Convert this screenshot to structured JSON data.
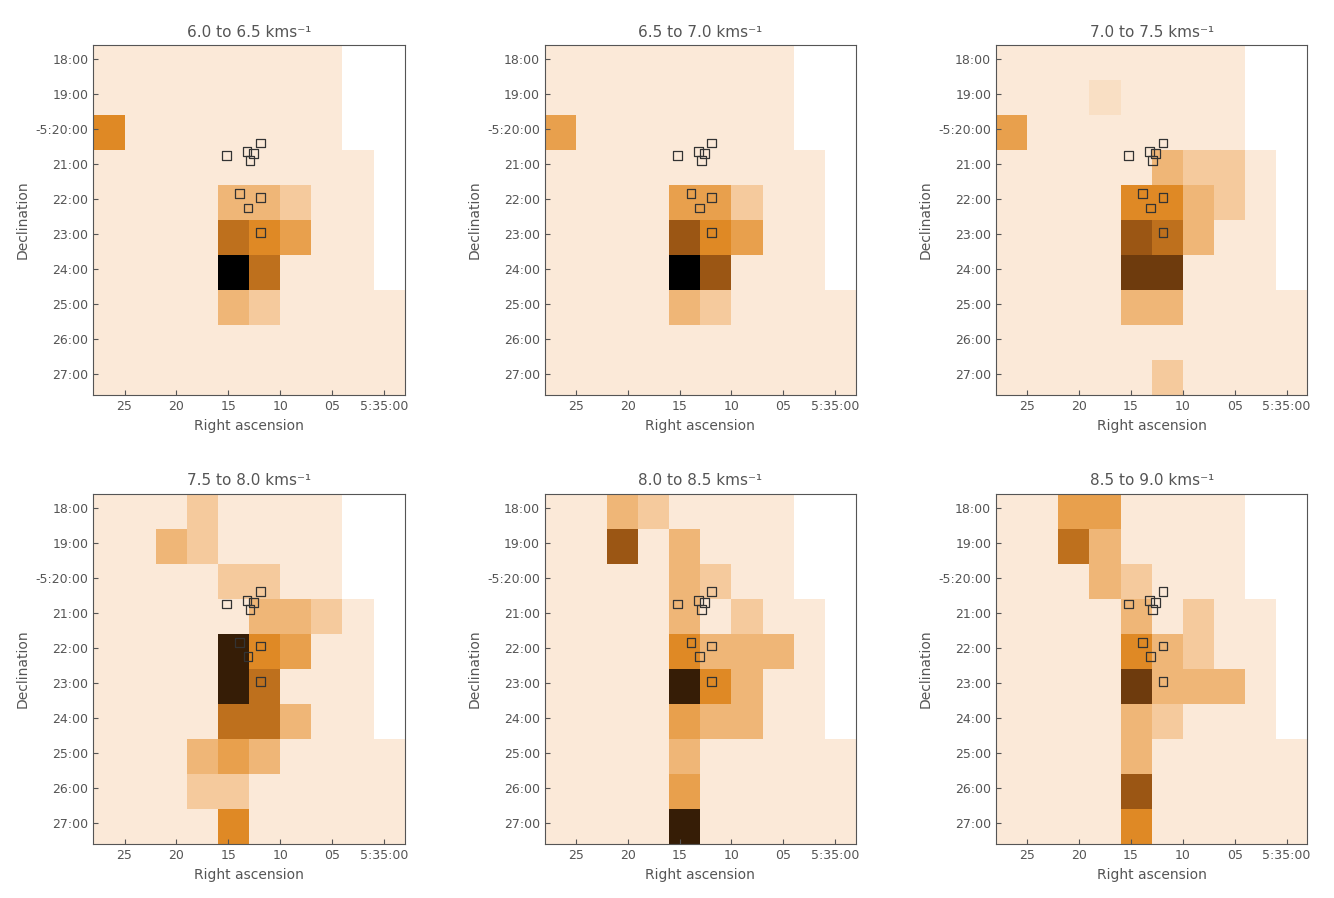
{
  "chart_data": {
    "type": "heatmap",
    "xlabel": "Right ascension",
    "ylabel": "Declination",
    "xlim": [
      28,
      -2
    ],
    "ylim": [
      -27.6,
      -17.6
    ],
    "xticks": [
      25,
      20,
      15,
      10,
      {
        "value": 5,
        "label": "05"
      },
      {
        "value": 0,
        "label": "5:35:00"
      }
    ],
    "yticks": [
      {
        "value": -18,
        "label": "18:00"
      },
      {
        "value": -19,
        "label": "19:00"
      },
      {
        "value": -20,
        "label": "-5:20:00"
      },
      {
        "value": -21,
        "label": "21:00"
      },
      {
        "value": -22,
        "label": "22:00"
      },
      {
        "value": -23,
        "label": "23:00"
      },
      {
        "value": -24,
        "label": "24:00"
      },
      {
        "value": -25,
        "label": "25:00"
      },
      {
        "value": -26,
        "label": "26:00"
      },
      {
        "value": -27,
        "label": "27:00"
      }
    ],
    "x_edges": [
      28,
      25,
      22,
      19,
      16,
      13,
      10,
      7,
      4,
      1,
      -2
    ],
    "y_edges": [
      -17.6,
      -18.6,
      -19.6,
      -20.6,
      -21.6,
      -22.6,
      -23.6,
      -24.6,
      -25.6,
      -26.6,
      -27.6
    ],
    "clim": [
      0,
      1
    ],
    "marker": "square",
    "markers": {
      "x": [
        15.2,
        13.2,
        12.6,
        12.9,
        11.9,
        13.9,
        11.9,
        13.1,
        11.9
      ],
      "y": [
        -20.75,
        -20.65,
        -20.7,
        -20.9,
        -20.4,
        -21.85,
        -21.95,
        -22.25,
        -22.95
      ]
    },
    "panels": [
      {
        "title": "6.0 to 6.5 kms⁻¹",
        "cells": [
          [
            0.05,
            0.05,
            0.05,
            0.05,
            0.05,
            0.05,
            0.05,
            0.05,
            null,
            null
          ],
          [
            0.05,
            0.05,
            0.05,
            0.05,
            0.05,
            0.05,
            0.05,
            0.05,
            null,
            null
          ],
          [
            0.5,
            0.05,
            0.05,
            0.05,
            0.05,
            0.05,
            0.05,
            0.05,
            null,
            null
          ],
          [
            0.05,
            0.05,
            0.05,
            0.05,
            0.05,
            0.05,
            0.05,
            0.05,
            0.05,
            null
          ],
          [
            0.05,
            0.05,
            0.05,
            0.05,
            0.3,
            0.3,
            0.2,
            0.05,
            0.05,
            null
          ],
          [
            0.05,
            0.05,
            0.05,
            0.05,
            0.6,
            0.5,
            0.4,
            0.05,
            0.05,
            null
          ],
          [
            0.05,
            0.05,
            0.05,
            0.05,
            1.0,
            0.6,
            0.05,
            0.05,
            0.05,
            null
          ],
          [
            0.05,
            0.05,
            0.05,
            0.05,
            0.3,
            0.2,
            0.05,
            0.05,
            0.05,
            0.05
          ],
          [
            0.05,
            0.05,
            0.05,
            0.05,
            0.05,
            0.05,
            0.05,
            0.05,
            0.05,
            0.05
          ],
          [
            0.05,
            0.05,
            0.05,
            0.05,
            0.05,
            0.05,
            0.05,
            0.05,
            0.05,
            0.05
          ]
        ]
      },
      {
        "title": "6.5 to 7.0 kms⁻¹",
        "cells": [
          [
            0.05,
            0.05,
            0.05,
            0.05,
            0.05,
            0.05,
            0.05,
            0.05,
            null,
            null
          ],
          [
            0.05,
            0.05,
            0.05,
            0.05,
            0.05,
            0.05,
            0.05,
            0.05,
            null,
            null
          ],
          [
            0.4,
            0.05,
            0.05,
            0.05,
            0.05,
            0.05,
            0.05,
            0.05,
            null,
            null
          ],
          [
            0.05,
            0.05,
            0.05,
            0.05,
            0.05,
            0.05,
            0.05,
            0.05,
            0.05,
            null
          ],
          [
            0.05,
            0.05,
            0.05,
            0.05,
            0.4,
            0.4,
            0.2,
            0.05,
            0.05,
            null
          ],
          [
            0.05,
            0.05,
            0.05,
            0.05,
            0.7,
            0.5,
            0.4,
            0.05,
            0.05,
            null
          ],
          [
            0.05,
            0.05,
            0.05,
            0.05,
            1.0,
            0.7,
            0.05,
            0.05,
            0.05,
            null
          ],
          [
            0.05,
            0.05,
            0.05,
            0.05,
            0.3,
            0.2,
            0.05,
            0.05,
            0.05,
            0.05
          ],
          [
            0.05,
            0.05,
            0.05,
            0.05,
            0.05,
            0.05,
            0.05,
            0.05,
            0.05,
            0.05
          ],
          [
            0.05,
            0.05,
            0.05,
            0.05,
            0.05,
            0.05,
            0.05,
            0.05,
            0.05,
            0.05
          ]
        ]
      },
      {
        "title": "7.0 to 7.5 kms⁻¹",
        "cells": [
          [
            0.05,
            0.05,
            0.05,
            0.05,
            0.05,
            0.05,
            0.05,
            0.05,
            null,
            null
          ],
          [
            0.05,
            0.05,
            0.05,
            0.1,
            0.05,
            0.05,
            0.05,
            0.05,
            null,
            null
          ],
          [
            0.4,
            0.05,
            0.05,
            0.05,
            0.05,
            0.05,
            0.05,
            0.05,
            null,
            null
          ],
          [
            0.05,
            0.05,
            0.05,
            0.05,
            0.05,
            0.3,
            0.2,
            0.2,
            0.05,
            null
          ],
          [
            0.05,
            0.05,
            0.05,
            0.05,
            0.5,
            0.5,
            0.3,
            0.2,
            0.05,
            null
          ],
          [
            0.05,
            0.05,
            0.05,
            0.05,
            0.7,
            0.6,
            0.3,
            0.05,
            0.05,
            null
          ],
          [
            0.05,
            0.05,
            0.05,
            0.05,
            0.8,
            0.8,
            0.05,
            0.05,
            0.05,
            null
          ],
          [
            0.05,
            0.05,
            0.05,
            0.05,
            0.3,
            0.3,
            0.05,
            0.05,
            0.05,
            0.05
          ],
          [
            0.05,
            0.05,
            0.05,
            0.05,
            0.05,
            0.05,
            0.05,
            0.05,
            0.05,
            0.05
          ],
          [
            0.05,
            0.05,
            0.05,
            0.05,
            0.05,
            0.2,
            0.05,
            0.05,
            0.05,
            0.05
          ]
        ]
      },
      {
        "title": "7.5 to 8.0 kms⁻¹",
        "cells": [
          [
            0.05,
            0.05,
            0.05,
            0.2,
            0.05,
            0.05,
            0.05,
            0.05,
            null,
            null
          ],
          [
            0.05,
            0.05,
            0.3,
            0.2,
            0.05,
            0.05,
            0.05,
            0.05,
            null,
            null
          ],
          [
            0.05,
            0.05,
            0.05,
            0.05,
            0.2,
            0.2,
            0.05,
            0.05,
            null,
            null
          ],
          [
            0.05,
            0.05,
            0.05,
            0.05,
            0.05,
            0.3,
            0.3,
            0.2,
            0.05,
            null
          ],
          [
            0.05,
            0.05,
            0.05,
            0.05,
            0.9,
            0.5,
            0.4,
            0.05,
            0.05,
            null
          ],
          [
            0.05,
            0.05,
            0.05,
            0.05,
            0.9,
            0.6,
            0.05,
            0.05,
            0.05,
            null
          ],
          [
            0.05,
            0.05,
            0.05,
            0.05,
            0.6,
            0.6,
            0.3,
            0.05,
            0.05,
            null
          ],
          [
            0.05,
            0.05,
            0.05,
            0.3,
            0.4,
            0.3,
            0.05,
            0.05,
            0.05,
            0.05
          ],
          [
            0.05,
            0.05,
            0.05,
            0.2,
            0.2,
            0.05,
            0.05,
            0.05,
            0.05,
            0.05
          ],
          [
            0.05,
            0.05,
            0.05,
            0.05,
            0.5,
            0.05,
            0.05,
            0.05,
            0.05,
            0.05
          ]
        ]
      },
      {
        "title": "8.0 to 8.5 kms⁻¹",
        "cells": [
          [
            0.05,
            0.05,
            0.3,
            0.2,
            0.05,
            0.05,
            0.05,
            0.05,
            null,
            null
          ],
          [
            0.05,
            0.05,
            0.7,
            0.05,
            0.3,
            0.05,
            0.05,
            0.05,
            null,
            null
          ],
          [
            0.05,
            0.05,
            0.05,
            0.05,
            0.3,
            0.2,
            0.05,
            0.05,
            null,
            null
          ],
          [
            0.05,
            0.05,
            0.05,
            0.05,
            0.3,
            0.05,
            0.2,
            0.05,
            0.05,
            null
          ],
          [
            0.05,
            0.05,
            0.05,
            0.05,
            0.5,
            0.3,
            0.3,
            0.3,
            0.05,
            null
          ],
          [
            0.05,
            0.05,
            0.05,
            0.05,
            0.9,
            0.5,
            0.3,
            0.05,
            0.05,
            null
          ],
          [
            0.05,
            0.05,
            0.05,
            0.05,
            0.4,
            0.3,
            0.3,
            0.05,
            0.05,
            null
          ],
          [
            0.05,
            0.05,
            0.05,
            0.05,
            0.3,
            0.05,
            0.05,
            0.05,
            0.05,
            0.05
          ],
          [
            0.05,
            0.05,
            0.05,
            0.05,
            0.4,
            0.05,
            0.05,
            0.05,
            0.05,
            0.05
          ],
          [
            0.05,
            0.05,
            0.05,
            0.05,
            0.9,
            0.05,
            0.05,
            0.05,
            0.05,
            0.05
          ]
        ]
      },
      {
        "title": "8.5 to 9.0 kms⁻¹",
        "cells": [
          [
            0.05,
            0.05,
            0.4,
            0.4,
            0.05,
            0.05,
            0.05,
            0.05,
            null,
            null
          ],
          [
            0.05,
            0.05,
            0.6,
            0.3,
            0.05,
            0.05,
            0.05,
            0.05,
            null,
            null
          ],
          [
            0.05,
            0.05,
            0.05,
            0.3,
            0.2,
            0.05,
            0.05,
            0.05,
            null,
            null
          ],
          [
            0.05,
            0.05,
            0.05,
            0.05,
            0.3,
            0.05,
            0.2,
            0.05,
            0.05,
            null
          ],
          [
            0.05,
            0.05,
            0.05,
            0.05,
            0.5,
            0.3,
            0.2,
            0.05,
            0.05,
            null
          ],
          [
            0.05,
            0.05,
            0.05,
            0.05,
            0.8,
            0.3,
            0.3,
            0.3,
            0.05,
            null
          ],
          [
            0.05,
            0.05,
            0.05,
            0.05,
            0.3,
            0.2,
            0.05,
            0.05,
            0.05,
            null
          ],
          [
            0.05,
            0.05,
            0.05,
            0.05,
            0.3,
            0.05,
            0.05,
            0.05,
            0.05,
            0.05
          ],
          [
            0.05,
            0.05,
            0.05,
            0.05,
            0.7,
            0.05,
            0.05,
            0.05,
            0.05,
            0.05
          ],
          [
            0.05,
            0.05,
            0.05,
            0.05,
            0.5,
            0.05,
            0.05,
            0.05,
            0.05,
            0.05
          ]
        ]
      }
    ]
  }
}
